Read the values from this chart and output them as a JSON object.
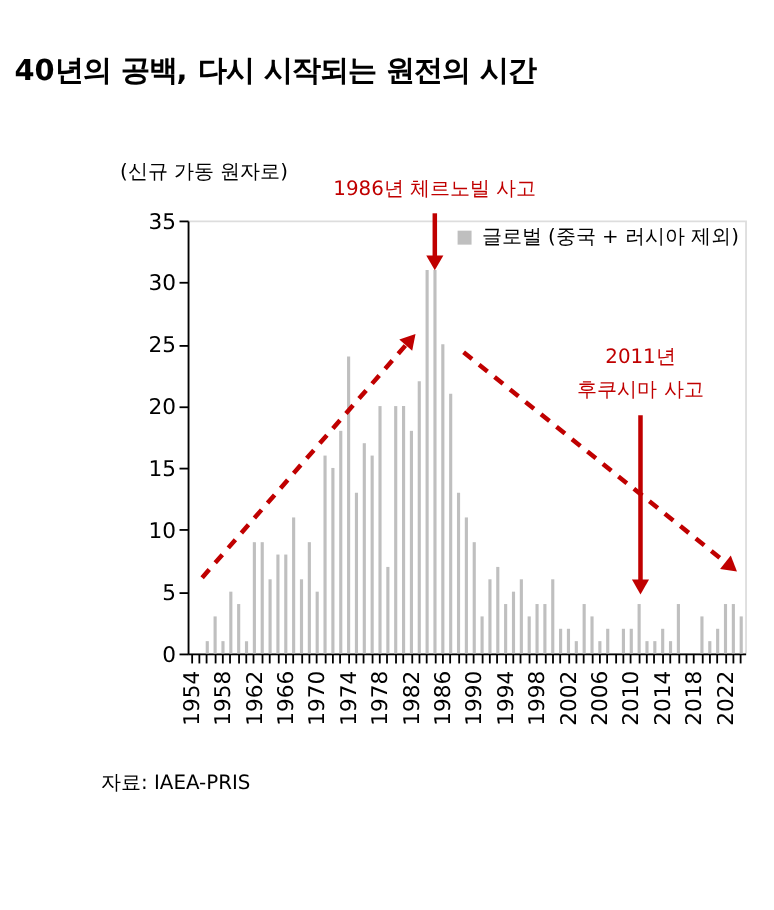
{
  "chart_data": {
    "type": "bar",
    "title": "40년의 공백, 다시 시작되는 원전의 시간",
    "ylabel": "(신규 가동 원자로)",
    "categories": [
      "1954",
      null,
      null,
      null,
      "1958",
      null,
      null,
      null,
      "1962",
      null,
      null,
      null,
      "1966",
      null,
      null,
      null,
      "1970",
      null,
      null,
      null,
      "1974",
      null,
      null,
      null,
      "1978",
      null,
      null,
      null,
      "1982",
      null,
      null,
      null,
      "1986",
      null,
      null,
      null,
      "1990",
      null,
      null,
      null,
      "1994",
      null,
      null,
      null,
      "1998",
      null,
      null,
      null,
      "2002",
      null,
      null,
      null,
      "2006",
      null,
      null,
      null,
      "2010",
      null,
      null,
      null,
      "2014",
      null,
      null,
      null,
      "2018",
      null,
      null,
      null,
      "2022",
      null,
      null
    ],
    "series": [
      {
        "name": "글로벌 (중국 + 러시아 제외)",
        "color": "#bfbfbf",
        "values": [
          0,
          0,
          1,
          3,
          1,
          5,
          4,
          1,
          9,
          9,
          6,
          8,
          8,
          11,
          6,
          9,
          5,
          16,
          15,
          18,
          24,
          13,
          17,
          16,
          20,
          7,
          20,
          20,
          18,
          22,
          31,
          31,
          25,
          21,
          13,
          11,
          9,
          3,
          6,
          7,
          4,
          5,
          6,
          3,
          4,
          4,
          6,
          2,
          2,
          1,
          4,
          3,
          1,
          2,
          0,
          2,
          2,
          4,
          1,
          1,
          2,
          1,
          4,
          0,
          0,
          3,
          1,
          2,
          4,
          4,
          3
        ]
      }
    ],
    "ylim": [
      0,
      35
    ],
    "yticks": [
      0,
      5,
      10,
      15,
      20,
      25,
      30,
      35
    ],
    "grid": false,
    "legend": "top right",
    "annotations": [
      {
        "text": "1986년 체르노빌 사고",
        "y": 31
      },
      {
        "text": "2011년\n후쿠시마 사고",
        "y": 4.5
      },
      "자료: IAEA-PRIS"
    ]
  }
}
